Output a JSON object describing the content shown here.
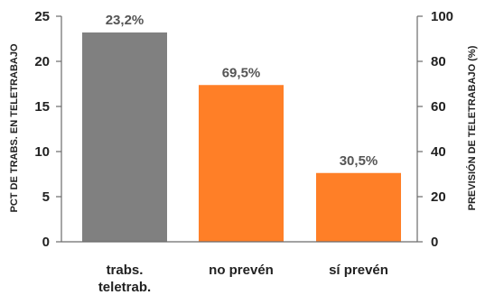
{
  "chart_data": {
    "type": "bar",
    "categories": [
      "trabs. teletrab.",
      "no prevén",
      "sí prevén"
    ],
    "category_lines": [
      [
        "trabs.",
        "teletrab."
      ],
      [
        "no prevén"
      ],
      [
        "sí prevén"
      ]
    ],
    "series": [
      {
        "axis": "left",
        "values": [
          23.2,
          null,
          null
        ],
        "color": "#808080"
      },
      {
        "axis": "right",
        "values": [
          null,
          69.5,
          30.5
        ],
        "color": "#ff7f27"
      }
    ],
    "data_labels": [
      "23,2%",
      "69,5%",
      "30,5%"
    ],
    "y_left": {
      "label": "PCT DE TRABS. EN TELETRABAJO",
      "lim": [
        0,
        25
      ],
      "ticks": [
        0,
        5,
        10,
        15,
        20,
        25
      ]
    },
    "y_right": {
      "label": "PREVISIÓN DE TELETRABAJO (%)",
      "lim": [
        0,
        100
      ],
      "ticks": [
        0,
        20,
        40,
        60,
        80,
        100
      ]
    },
    "grid": false,
    "legend": "none"
  }
}
